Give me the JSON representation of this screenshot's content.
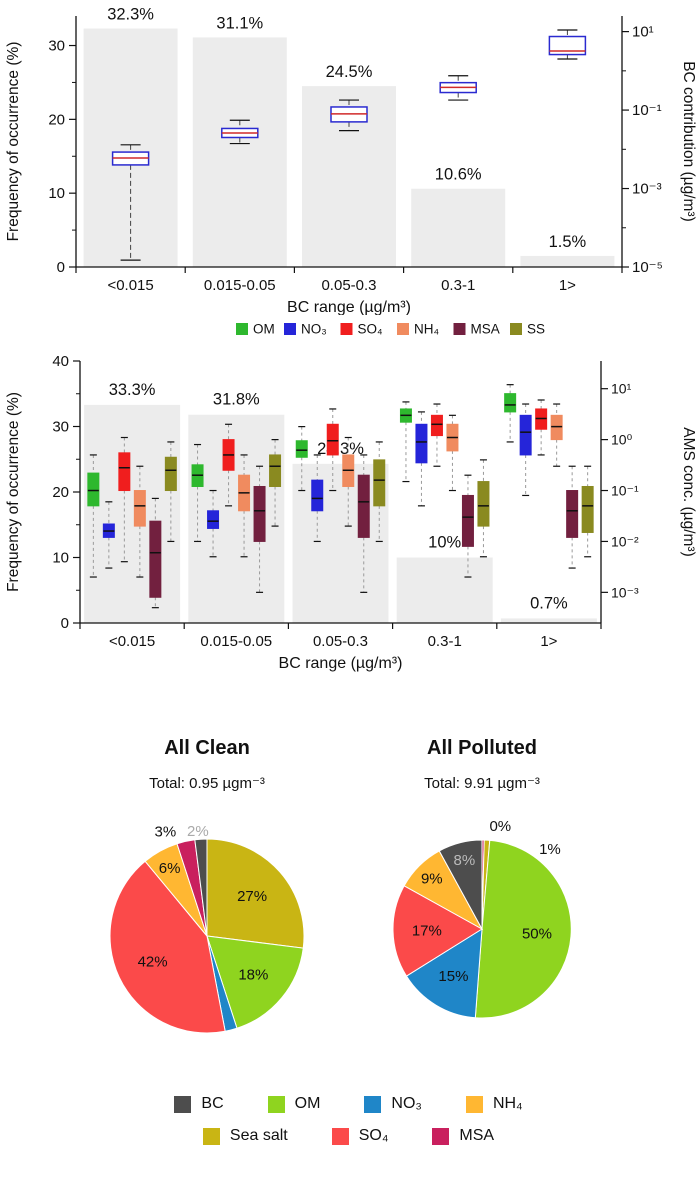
{
  "chart_data": [
    {
      "id": "bc-frequency-boxplot",
      "type": "bar+box",
      "categories": [
        "<0.015",
        "0.015-0.05",
        "0.05-0.3",
        "0.3-1",
        "1>"
      ],
      "bar_values_pct": [
        32.3,
        31.1,
        24.5,
        10.6,
        1.5
      ],
      "bar_labels": [
        "32.3%",
        "31.1%",
        "24.5%",
        "10.6%",
        "1.5%"
      ],
      "xlabel": "BC range (µg/m³)",
      "ylabel_left": "Frequency of occurrence (%)",
      "ylabel_right": "BC contribution (µg/m³)",
      "ylim_left": [
        0,
        34
      ],
      "yticks_left": [
        0,
        10,
        20,
        30
      ],
      "yticks_left_minor": [
        5,
        15,
        25
      ],
      "yscale_right": "log",
      "ylim_right": [
        1e-05,
        25
      ],
      "yticks_right": [
        1e-05,
        0.001,
        0.1,
        10
      ],
      "ytick_labels_right": [
        "10⁻⁵",
        "10⁻³",
        "10⁻¹",
        "10¹"
      ],
      "yticks_right_minor": [
        0.0001,
        0.01,
        1
      ],
      "bar_color": "#ececec",
      "box_style": {
        "stroke": "#2a2ad0",
        "median": "#d02a2a",
        "whisker": "#444444"
      },
      "boxes": [
        {
          "low": 1.5e-05,
          "q1": 0.004,
          "median": 0.006,
          "q3": 0.0085,
          "high": 0.013
        },
        {
          "low": 0.014,
          "q1": 0.02,
          "median": 0.026,
          "q3": 0.034,
          "high": 0.055
        },
        {
          "low": 0.03,
          "q1": 0.05,
          "median": 0.08,
          "q3": 0.12,
          "high": 0.18
        },
        {
          "low": 0.18,
          "q1": 0.28,
          "median": 0.38,
          "q3": 0.5,
          "high": 0.75
        },
        {
          "low": 2.0,
          "q1": 2.6,
          "median": 3.2,
          "q3": 7.5,
          "high": 11
        }
      ]
    },
    {
      "id": "ams-frequency-boxplot",
      "type": "bar+box-multiseries",
      "categories": [
        "<0.015",
        "0.015-0.05",
        "0.05-0.3",
        "0.3-1",
        "1>"
      ],
      "bar_values_pct": [
        33.3,
        31.8,
        24.3,
        10,
        0.7
      ],
      "bar_labels": [
        "33.3%",
        "31.8%",
        "24.3%",
        "10%",
        "0.7%"
      ],
      "xlabel": "BC range (µg/m³)",
      "ylabel_left": "Frequency of occurrence (%)",
      "ylabel_right": "AMS conc. (µg/m³)",
      "ylim_left": [
        0,
        40
      ],
      "yticks_left": [
        0,
        10,
        20,
        30,
        40
      ],
      "yticks_left_minor": [
        5,
        15,
        25,
        35
      ],
      "yscale_right": "log",
      "ylim_right": [
        0.00025,
        35
      ],
      "yticks_right": [
        10,
        1,
        0.1,
        0.01,
        0.001
      ],
      "ytick_labels_right": [
        "10¹",
        "10⁰",
        "10⁻¹",
        "10⁻²",
        "10⁻³"
      ],
      "bar_color": "#ececec",
      "series": [
        {
          "key": "om",
          "name": "OM",
          "color": "#2eb82e",
          "boxes": [
            {
              "low": 0.002,
              "q1": 0.05,
              "median": 0.1,
              "q3": 0.22,
              "high": 0.5
            },
            {
              "low": 0.01,
              "q1": 0.12,
              "median": 0.2,
              "q3": 0.32,
              "high": 0.8
            },
            {
              "low": 0.1,
              "q1": 0.45,
              "median": 0.62,
              "q3": 0.95,
              "high": 1.8
            },
            {
              "low": 0.15,
              "q1": 2.2,
              "median": 3.0,
              "q3": 4.0,
              "high": 5.5
            },
            {
              "low": 0.9,
              "q1": 3.5,
              "median": 4.8,
              "q3": 8.0,
              "high": 12
            }
          ]
        },
        {
          "key": "no3",
          "name": "NO₃",
          "color": "#2525d9",
          "boxes": [
            {
              "low": 0.003,
              "q1": 0.012,
              "median": 0.016,
              "q3": 0.022,
              "high": 0.06
            },
            {
              "low": 0.005,
              "q1": 0.018,
              "median": 0.025,
              "q3": 0.04,
              "high": 0.1
            },
            {
              "low": 0.01,
              "q1": 0.04,
              "median": 0.07,
              "q3": 0.16,
              "high": 0.5
            },
            {
              "low": 0.05,
              "q1": 0.35,
              "median": 0.9,
              "q3": 2.0,
              "high": 3.5
            },
            {
              "low": 0.08,
              "q1": 0.5,
              "median": 1.4,
              "q3": 3.0,
              "high": 5.0
            }
          ]
        },
        {
          "key": "so4",
          "name": "SO₄",
          "color": "#f01e1e",
          "boxes": [
            {
              "low": 0.004,
              "q1": 0.1,
              "median": 0.28,
              "q3": 0.55,
              "high": 1.1
            },
            {
              "low": 0.05,
              "q1": 0.25,
              "median": 0.5,
              "q3": 1.0,
              "high": 2.0
            },
            {
              "low": 0.1,
              "q1": 0.5,
              "median": 0.95,
              "q3": 2.0,
              "high": 4.0
            },
            {
              "low": 0.3,
              "q1": 1.2,
              "median": 2.0,
              "q3": 3.0,
              "high": 5.0
            },
            {
              "low": 0.5,
              "q1": 1.6,
              "median": 2.6,
              "q3": 4.0,
              "high": 6.0
            }
          ]
        },
        {
          "key": "nh4",
          "name": "NH₄",
          "color": "#f08b5f",
          "boxes": [
            {
              "low": 0.002,
              "q1": 0.02,
              "median": 0.05,
              "q3": 0.1,
              "high": 0.3
            },
            {
              "low": 0.005,
              "q1": 0.04,
              "median": 0.09,
              "q3": 0.2,
              "high": 0.5
            },
            {
              "low": 0.02,
              "q1": 0.12,
              "median": 0.25,
              "q3": 0.5,
              "high": 1.1
            },
            {
              "low": 0.1,
              "q1": 0.6,
              "median": 1.1,
              "q3": 2.0,
              "high": 3.0
            },
            {
              "low": 0.3,
              "q1": 1.0,
              "median": 1.8,
              "q3": 3.0,
              "high": 5.0
            }
          ]
        },
        {
          "key": "msa",
          "name": "MSA",
          "color": "#72203f",
          "boxes": [
            {
              "low": 0.0005,
              "q1": 0.0008,
              "median": 0.006,
              "q3": 0.025,
              "high": 0.07
            },
            {
              "low": 0.001,
              "q1": 0.01,
              "median": 0.04,
              "q3": 0.12,
              "high": 0.3
            },
            {
              "low": 0.001,
              "q1": 0.012,
              "median": 0.06,
              "q3": 0.2,
              "high": 0.5
            },
            {
              "low": 0.002,
              "q1": 0.008,
              "median": 0.03,
              "q3": 0.08,
              "high": 0.2
            },
            {
              "low": 0.003,
              "q1": 0.012,
              "median": 0.04,
              "q3": 0.1,
              "high": 0.3
            }
          ]
        },
        {
          "key": "ss",
          "name": "SS",
          "color": "#8a8a20",
          "boxes": [
            {
              "low": 0.01,
              "q1": 0.1,
              "median": 0.25,
              "q3": 0.45,
              "high": 0.9
            },
            {
              "low": 0.02,
              "q1": 0.12,
              "median": 0.3,
              "q3": 0.5,
              "high": 1.0
            },
            {
              "low": 0.01,
              "q1": 0.05,
              "median": 0.16,
              "q3": 0.4,
              "high": 0.9
            },
            {
              "low": 0.005,
              "q1": 0.02,
              "median": 0.05,
              "q3": 0.15,
              "high": 0.4
            },
            {
              "low": 0.005,
              "q1": 0.015,
              "median": 0.05,
              "q3": 0.12,
              "high": 0.3
            }
          ]
        }
      ]
    },
    {
      "id": "pie-all-clean",
      "type": "pie",
      "title": "All Clean",
      "subtitle": "Total: 0.95 µgm⁻³",
      "slices": [
        {
          "key": "seasalt",
          "name": "Sea salt",
          "pct": 27,
          "label": "27%",
          "color": "#c9b514"
        },
        {
          "key": "om",
          "name": "OM",
          "pct": 18,
          "label": "18%",
          "color": "#8fd41f"
        },
        {
          "key": "no3",
          "name": "NO₃",
          "pct": 2,
          "label": "",
          "color": "#1f86c8"
        },
        {
          "key": "so4",
          "name": "SO₄",
          "pct": 42,
          "label": "42%",
          "color": "#fb4a4a"
        },
        {
          "key": "nh4",
          "name": "NH₄",
          "pct": 6,
          "label": "6%",
          "color": "#ffb732"
        },
        {
          "key": "msa",
          "name": "MSA",
          "pct": 3,
          "label": "3%",
          "color": "#c9205e",
          "label_offset": [
            -17,
            6
          ]
        },
        {
          "key": "bc",
          "name": "BC",
          "pct": 2,
          "label": "2%",
          "color": "#4d4d4d",
          "label_color": "#aaaaaa",
          "label_offset": [
            -2,
            8
          ]
        }
      ]
    },
    {
      "id": "pie-all-polluted",
      "type": "pie",
      "title": "All Polluted",
      "subtitle": "Total: 9.91 µgm⁻³",
      "slices": [
        {
          "key": "msa",
          "name": "MSA",
          "pct": 0.4,
          "label": "0%",
          "color": "#c9205e",
          "label_offset": [
            17,
            2
          ]
        },
        {
          "key": "seasalt",
          "name": "Sea salt",
          "pct": 1,
          "label": "1%",
          "color": "#c9b514",
          "label_offset": [
            62,
            25
          ]
        },
        {
          "key": "om",
          "name": "OM",
          "pct": 50,
          "label": "50%",
          "color": "#8fd41f"
        },
        {
          "key": "no3",
          "name": "NO₃",
          "pct": 15,
          "label": "15%",
          "color": "#1f86c8"
        },
        {
          "key": "so4",
          "name": "SO₄",
          "pct": 17,
          "label": "17%",
          "color": "#fb4a4a"
        },
        {
          "key": "nh4",
          "name": "NH₄",
          "pct": 9,
          "label": "9%",
          "color": "#ffb732"
        },
        {
          "key": "bc",
          "name": "BC",
          "pct": 8,
          "label": "8%",
          "color": "#4d4d4d",
          "label_color": "#bbbbbb"
        }
      ]
    }
  ],
  "legend_bottom": {
    "rows": [
      [
        {
          "key": "bc",
          "label": "BC",
          "color": "#4d4d4d"
        },
        {
          "key": "om",
          "label": "OM",
          "color": "#8fd41f"
        },
        {
          "key": "no3",
          "label": "NO₃",
          "color": "#1f86c8"
        },
        {
          "key": "nh4",
          "label": "NH₄",
          "color": "#ffb732"
        }
      ],
      [
        {
          "key": "seasalt",
          "label": "Sea salt",
          "color": "#c9b514"
        },
        {
          "key": "so4",
          "label": "SO₄",
          "color": "#fb4a4a"
        },
        {
          "key": "msa",
          "label": "MSA",
          "color": "#c9205e"
        }
      ]
    ]
  }
}
